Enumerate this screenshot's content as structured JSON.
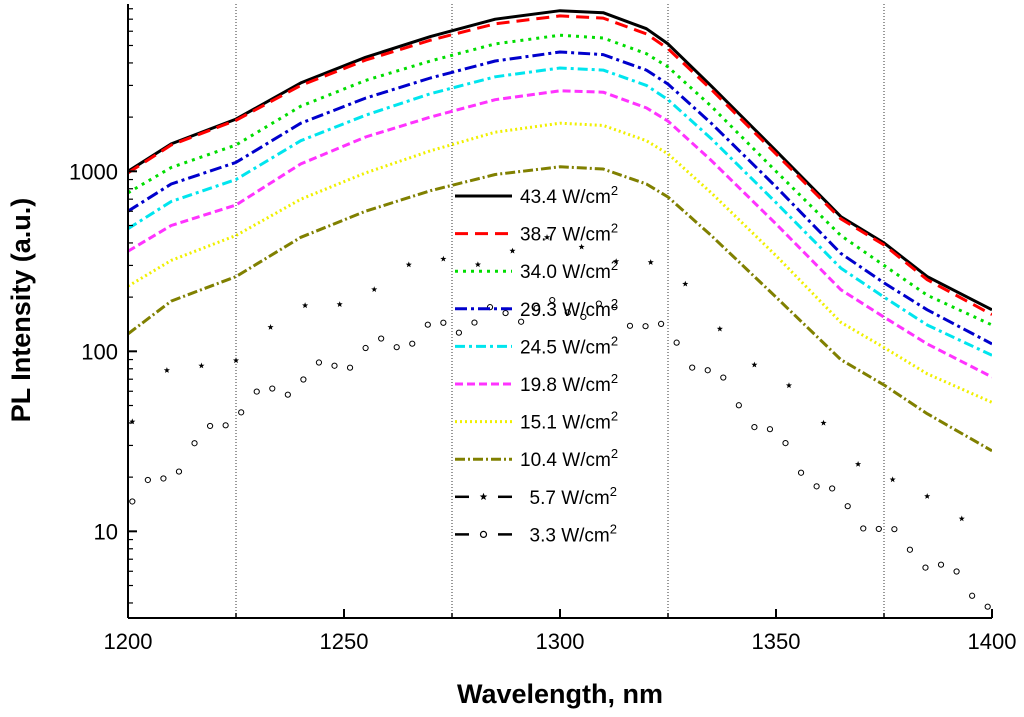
{
  "chart_data": {
    "type": "line",
    "title": "",
    "xlabel": "Wavelength, nm",
    "ylabel": "PL Intensity (a.u.)",
    "y_scale": "log",
    "xlim": [
      1200,
      1400
    ],
    "ylim": [
      3.3,
      8500
    ],
    "x_ticks": [
      1200,
      1250,
      1300,
      1350,
      1400
    ],
    "x_tick_labels": [
      "1200",
      "1250",
      "1300",
      "1350",
      "1400"
    ],
    "y_ticks": [
      10,
      100,
      1000
    ],
    "y_tick_labels": [
      "10",
      "100",
      "1000"
    ],
    "reference_lines_x": [
      1225,
      1275,
      1325,
      1375
    ],
    "legend_position": "center",
    "power_unit_base": "W/cm",
    "power_unit_exp": "2",
    "x": [
      1200,
      1210,
      1225,
      1240,
      1255,
      1270,
      1285,
      1300,
      1310,
      1320,
      1325,
      1335,
      1350,
      1365,
      1375,
      1385,
      1400
    ],
    "series": [
      {
        "name": "43.4",
        "color": "#000000",
        "dash": "",
        "marker": "none",
        "values": [
          1000,
          1420,
          1950,
          3100,
          4300,
          5600,
          7000,
          7800,
          7600,
          6200,
          5100,
          2980,
          1300,
          560,
          400,
          260,
          170
        ]
      },
      {
        "name": "38.7",
        "color": "#ff0000",
        "dash": "13 7",
        "marker": "none",
        "values": [
          980,
          1400,
          1920,
          3000,
          4150,
          5350,
          6600,
          7300,
          7100,
          5800,
          4800,
          2850,
          1250,
          545,
          390,
          250,
          160
        ]
      },
      {
        "name": "34.0",
        "color": "#00dd00",
        "dash": "3 5",
        "marker": "none",
        "values": [
          760,
          1050,
          1400,
          2300,
          3200,
          4100,
          5100,
          5700,
          5500,
          4500,
          3800,
          2300,
          1000,
          440,
          300,
          205,
          140
        ]
      },
      {
        "name": "29.3",
        "color": "#0000cc",
        "dash": "12 4 3 4",
        "marker": "none",
        "values": [
          600,
          850,
          1120,
          1850,
          2550,
          3300,
          4100,
          4600,
          4450,
          3650,
          3050,
          1850,
          820,
          350,
          240,
          170,
          110
        ]
      },
      {
        "name": "24.5",
        "color": "#00e5ee",
        "dash": "10 4 3 4",
        "marker": "none",
        "values": [
          480,
          680,
          900,
          1480,
          2050,
          2700,
          3350,
          3750,
          3650,
          3000,
          2500,
          1520,
          670,
          290,
          200,
          140,
          95
        ]
      },
      {
        "name": "19.8",
        "color": "#ff33ff",
        "dash": "8 4",
        "marker": "none",
        "values": [
          360,
          500,
          650,
          1100,
          1550,
          2000,
          2500,
          2800,
          2750,
          2250,
          1900,
          1150,
          510,
          220,
          155,
          110,
          72
        ]
      },
      {
        "name": "15.1",
        "color": "#f0f000",
        "dash": "2 3",
        "marker": "none",
        "values": [
          230,
          320,
          440,
          700,
          980,
          1300,
          1650,
          1850,
          1800,
          1480,
          1250,
          760,
          340,
          145,
          105,
          75,
          52
        ]
      },
      {
        "name": "10.4",
        "color": "#808000",
        "dash": "10 3 2 3",
        "marker": "none",
        "values": [
          125,
          190,
          260,
          430,
          600,
          780,
          960,
          1060,
          1030,
          850,
          720,
          440,
          200,
          90,
          65,
          45,
          28
        ]
      },
      {
        "name": "5.7",
        "color": "#000000",
        "dash": "",
        "marker": "star",
        "values": [
          38,
          75,
          100,
          160,
          230,
          300,
          360,
          390,
          380,
          310,
          260,
          160,
          70,
          30,
          22,
          14,
          10
        ]
      },
      {
        "name": "3.3",
        "color": "#000000",
        "dash": "",
        "marker": "circle",
        "values": [
          14,
          22,
          48,
          70,
          100,
          130,
          160,
          175,
          170,
          145,
          120,
          75,
          32,
          14,
          10,
          7,
          4
        ]
      }
    ]
  }
}
